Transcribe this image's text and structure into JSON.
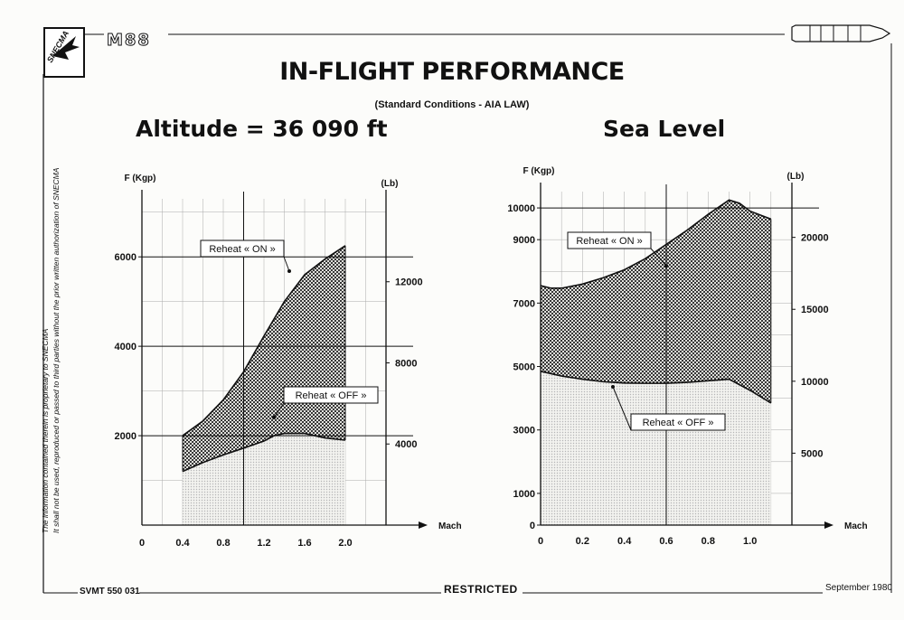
{
  "header": {
    "company": "SNECMA",
    "model": "M88",
    "title": "IN-FLIGHT PERFORMANCE",
    "subtitle": "(Standard Conditions - AIA LAW)"
  },
  "side_note": {
    "line1": "The information contained therein is proprietary to SNECMA",
    "line2": "It shall not be used, reproduced or passed to third parties without the prior written authorization of SNECMA"
  },
  "footer": {
    "doc_ref": "SVMT 550 031",
    "classification": "RESTRICTED",
    "date": "September 1980"
  },
  "chart_data": [
    {
      "type": "area",
      "title": "Altitude = 36 090 ft",
      "xlabel": "Mach",
      "ylabel_left": "F (Kgp)",
      "ylabel_right": "(Lb)",
      "xlim": [
        0,
        2.4
      ],
      "ylim": [
        0,
        7500
      ],
      "x_ticks": [
        "0",
        "0.4",
        "0.8",
        "1.2",
        "1.6",
        "2.0"
      ],
      "x_tick_values": [
        0,
        0.4,
        0.8,
        1.2,
        1.6,
        2.0
      ],
      "y_ticks_left": [
        "2000",
        "4000",
        "6000"
      ],
      "y_tick_left_values": [
        2000,
        4000,
        6000
      ],
      "y_ticks_right": [
        "4000",
        "8000",
        "12000"
      ],
      "y_tick_right_values": [
        4000,
        8000,
        12000
      ],
      "lb_per_kgp": 2.2046,
      "series": [
        {
          "name": "Reheat « ON »",
          "x": [
            0.4,
            0.6,
            0.8,
            1.0,
            1.2,
            1.4,
            1.6,
            1.8,
            2.0
          ],
          "values": [
            2000,
            2330,
            2800,
            3430,
            4230,
            5000,
            5600,
            5950,
            6250
          ]
        },
        {
          "name": "Reheat « OFF »",
          "x": [
            0.4,
            0.6,
            0.8,
            1.0,
            1.2,
            1.3,
            1.4,
            1.6,
            1.8,
            2.0
          ],
          "values": [
            1200,
            1400,
            1570,
            1720,
            1880,
            2000,
            2050,
            2050,
            1950,
            1900
          ]
        }
      ],
      "major_gridlines_y": [
        2000,
        4000,
        6000
      ],
      "major_gridlines_x": [
        1.0
      ],
      "grid": true,
      "colors": {
        "reheat_on_fill": "#2b2b2b",
        "reheat_off_fill": "#b5b5b5"
      }
    },
    {
      "type": "area",
      "title": "Sea Level",
      "xlabel": "Mach",
      "ylabel_left": "F (Kgp)",
      "ylabel_right": "(Lb)",
      "xlim": [
        0,
        1.2
      ],
      "ylim": [
        0,
        10800
      ],
      "x_ticks": [
        "0",
        "0.2",
        "0.4",
        "0.6",
        "0.8",
        "1.0"
      ],
      "x_tick_values": [
        0,
        0.2,
        0.4,
        0.6,
        0.8,
        1.0
      ],
      "y_ticks_left": [
        "0",
        "1000",
        "3000",
        "5000",
        "7000",
        "9000",
        "10000"
      ],
      "y_tick_left_values": [
        0,
        1000,
        3000,
        5000,
        7000,
        9000,
        10000
      ],
      "y_ticks_right": [
        "5000",
        "10000",
        "15000",
        "20000"
      ],
      "y_tick_right_values": [
        5000,
        10000,
        15000,
        20000
      ],
      "lb_per_kgp": 2.2046,
      "series": [
        {
          "name": "Reheat « ON »",
          "x": [
            0,
            0.05,
            0.1,
            0.2,
            0.3,
            0.4,
            0.5,
            0.6,
            0.7,
            0.8,
            0.9,
            0.95,
            1.0,
            1.1
          ],
          "values": [
            7550,
            7470,
            7470,
            7600,
            7800,
            8050,
            8400,
            8850,
            9300,
            9800,
            10250,
            10150,
            9900,
            9650
          ]
        },
        {
          "name": "Reheat « OFF »",
          "x": [
            0,
            0.1,
            0.2,
            0.3,
            0.4,
            0.5,
            0.6,
            0.7,
            0.8,
            0.9,
            1.0,
            1.1
          ],
          "values": [
            4850,
            4700,
            4600,
            4520,
            4480,
            4470,
            4470,
            4500,
            4550,
            4600,
            4250,
            3850
          ]
        }
      ],
      "major_gridlines_y": [
        10000
      ],
      "major_gridlines_x": [
        0.6
      ],
      "grid": true,
      "colors": {
        "reheat_on_fill": "#2b2b2b",
        "reheat_off_fill": "#b5b5b5"
      }
    }
  ]
}
